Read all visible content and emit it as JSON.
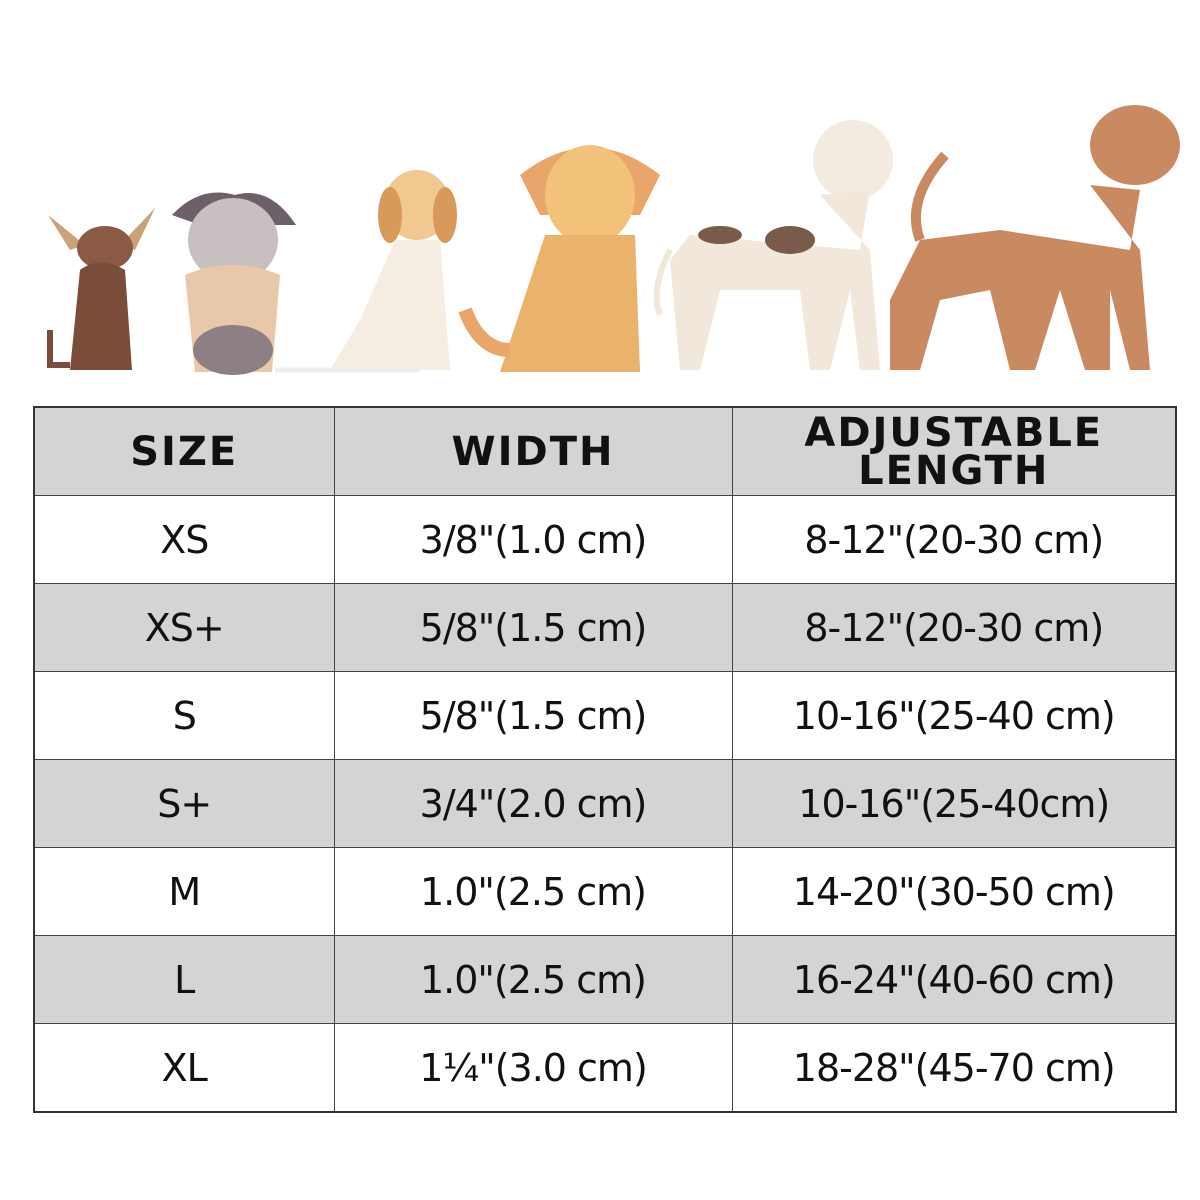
{
  "colors": {
    "header_bg": "#d4d4d4",
    "alt_row_bg": "#d4d4d4",
    "row_bg": "#ffffff",
    "border": "#444444"
  },
  "illustration": {
    "icons": [
      "chihuahua-icon",
      "schnauzer-icon",
      "beagle-icon",
      "golden-retriever-icon",
      "dalmatian-icon",
      "airedale-terrier-icon"
    ]
  },
  "table": {
    "headers": [
      "SIZE",
      "WIDTH",
      "ADJUSTABLE LENGTH"
    ],
    "rows": [
      {
        "size": "XS",
        "width": "3/8\"(1.0 cm)",
        "length": "8-12\"(20-30 cm)"
      },
      {
        "size": "XS+",
        "width": "5/8\"(1.5 cm)",
        "length": "8-12\"(20-30 cm)"
      },
      {
        "size": "S",
        "width": "5/8\"(1.5 cm)",
        "length": "10-16\"(25-40 cm)"
      },
      {
        "size": "S+",
        "width": "3/4\"(2.0 cm)",
        "length": "10-16\"(25-40cm)"
      },
      {
        "size": "M",
        "width": "1.0\"(2.5 cm)",
        "length": "14-20\"(30-50 cm)"
      },
      {
        "size": "L",
        "width": "1.0\"(2.5 cm)",
        "length": "16-24\"(40-60 cm)"
      },
      {
        "size": "XL",
        "width": "1¼\"(3.0 cm)",
        "length": "18-28\"(45-70 cm)"
      }
    ]
  }
}
